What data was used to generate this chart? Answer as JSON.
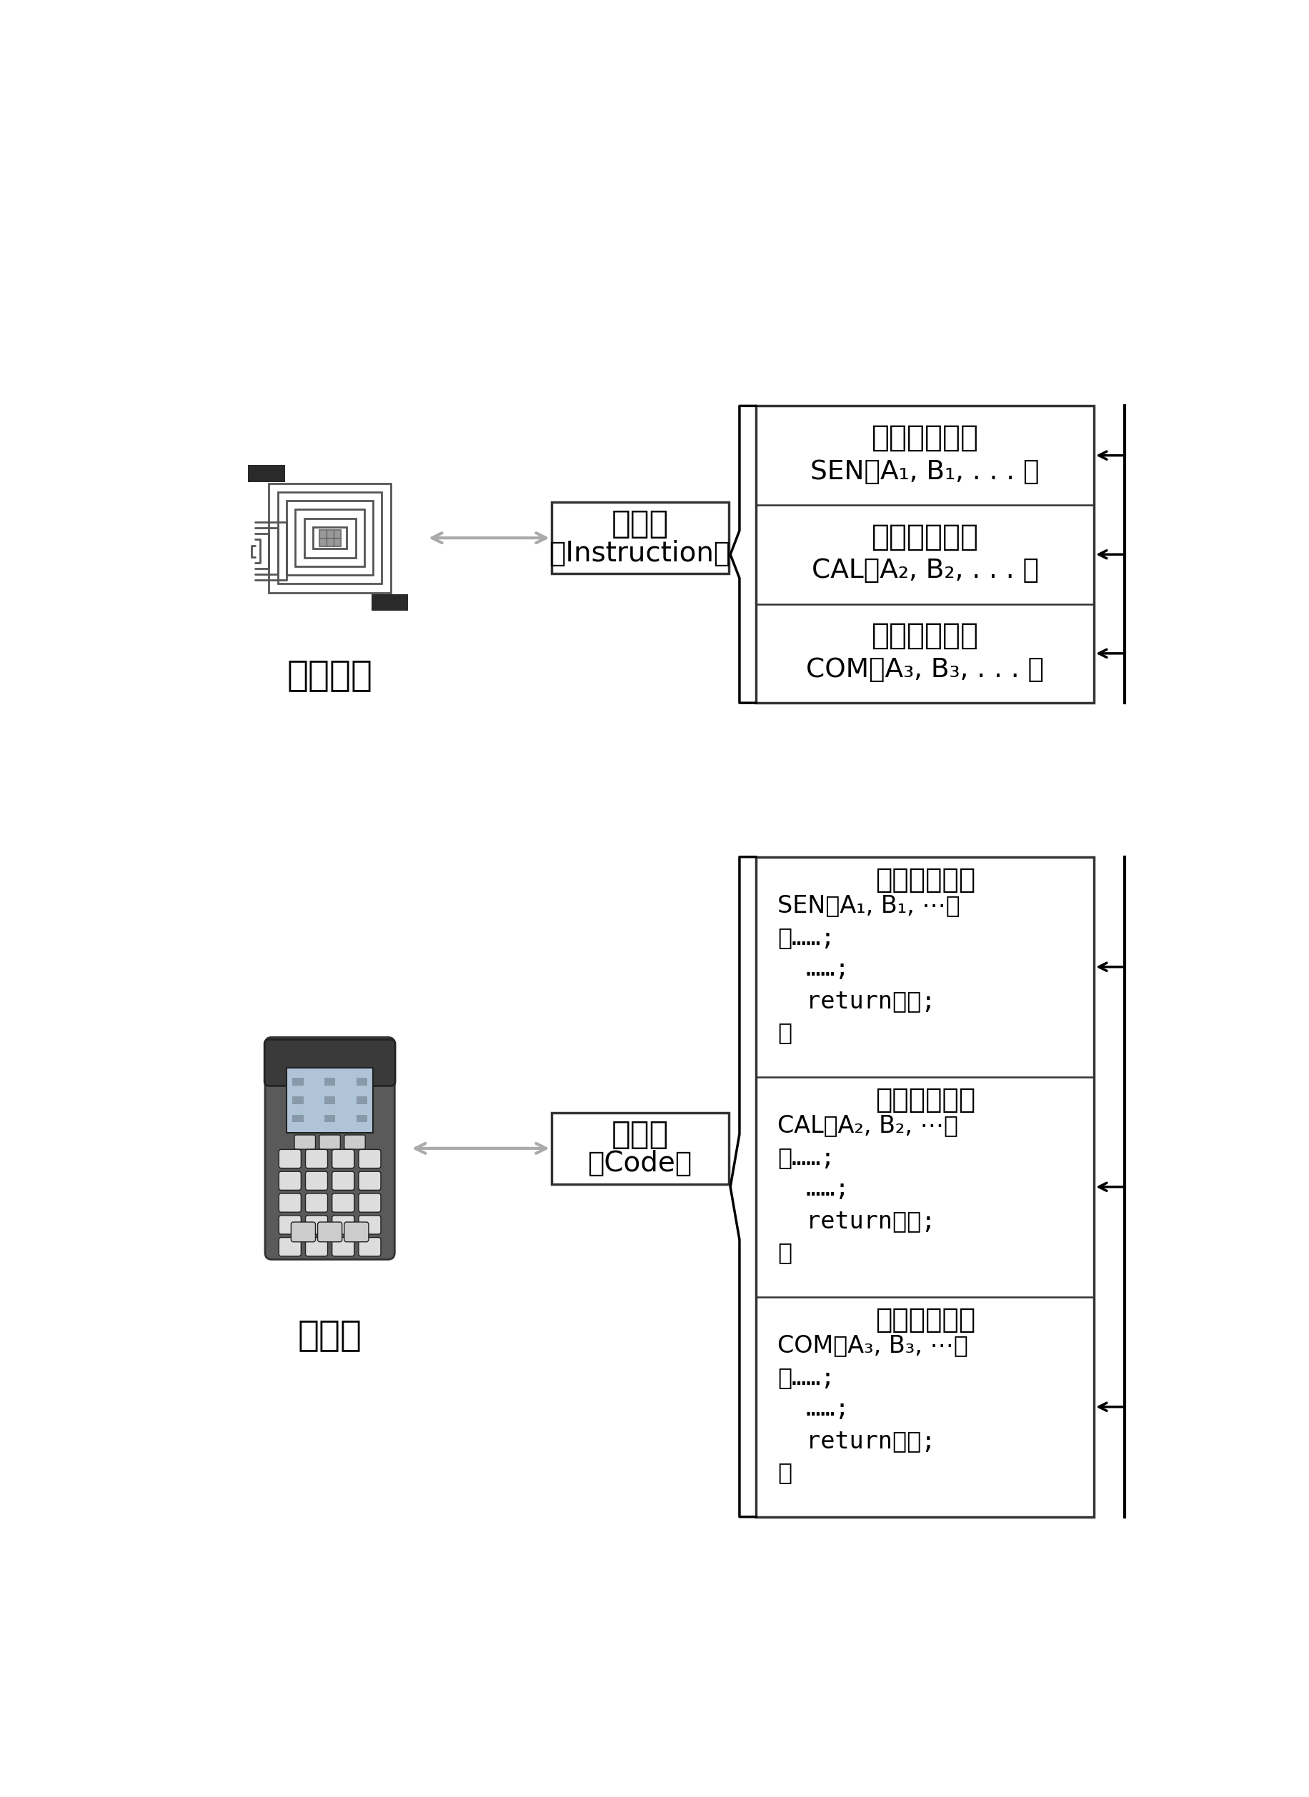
{
  "bg_color": "#ffffff",
  "top_device_label": "电子标签",
  "bottom_device_label": "读写器",
  "top_box_line1": "指令段",
  "top_box_line2": "（Instruction）",
  "bottom_box_line1": "代码段",
  "bottom_box_line2": "（Code）",
  "top_sections": [
    {
      "title": "感知功能指令",
      "body": "SEN（A₁, B₁, . . . ）"
    },
    {
      "title": "计算功能指令",
      "body": "CAL（A₂, B₂, . . . ）"
    },
    {
      "title": "通信功能指令",
      "body": "COM（A₃, B₃, . . . ）"
    }
  ],
  "bottom_sections": [
    {
      "title": "感知功能代码",
      "sig": "SEN（A₁, B₁, ⋯）",
      "lines": [
        "｛……;",
        "  ……;",
        "  return（）;",
        "｝"
      ]
    },
    {
      "title": "计算功能代码",
      "sig": "CAL（A₂, B₂, ⋯）",
      "lines": [
        "｛……;",
        "  ……;",
        "  return（）;",
        "｝"
      ]
    },
    {
      "title": "通信功能代码",
      "sig": "COM（A₃, B₃, ⋯）",
      "lines": [
        "｛……;",
        "  ……;",
        "  return（）;",
        "｝"
      ]
    }
  ]
}
